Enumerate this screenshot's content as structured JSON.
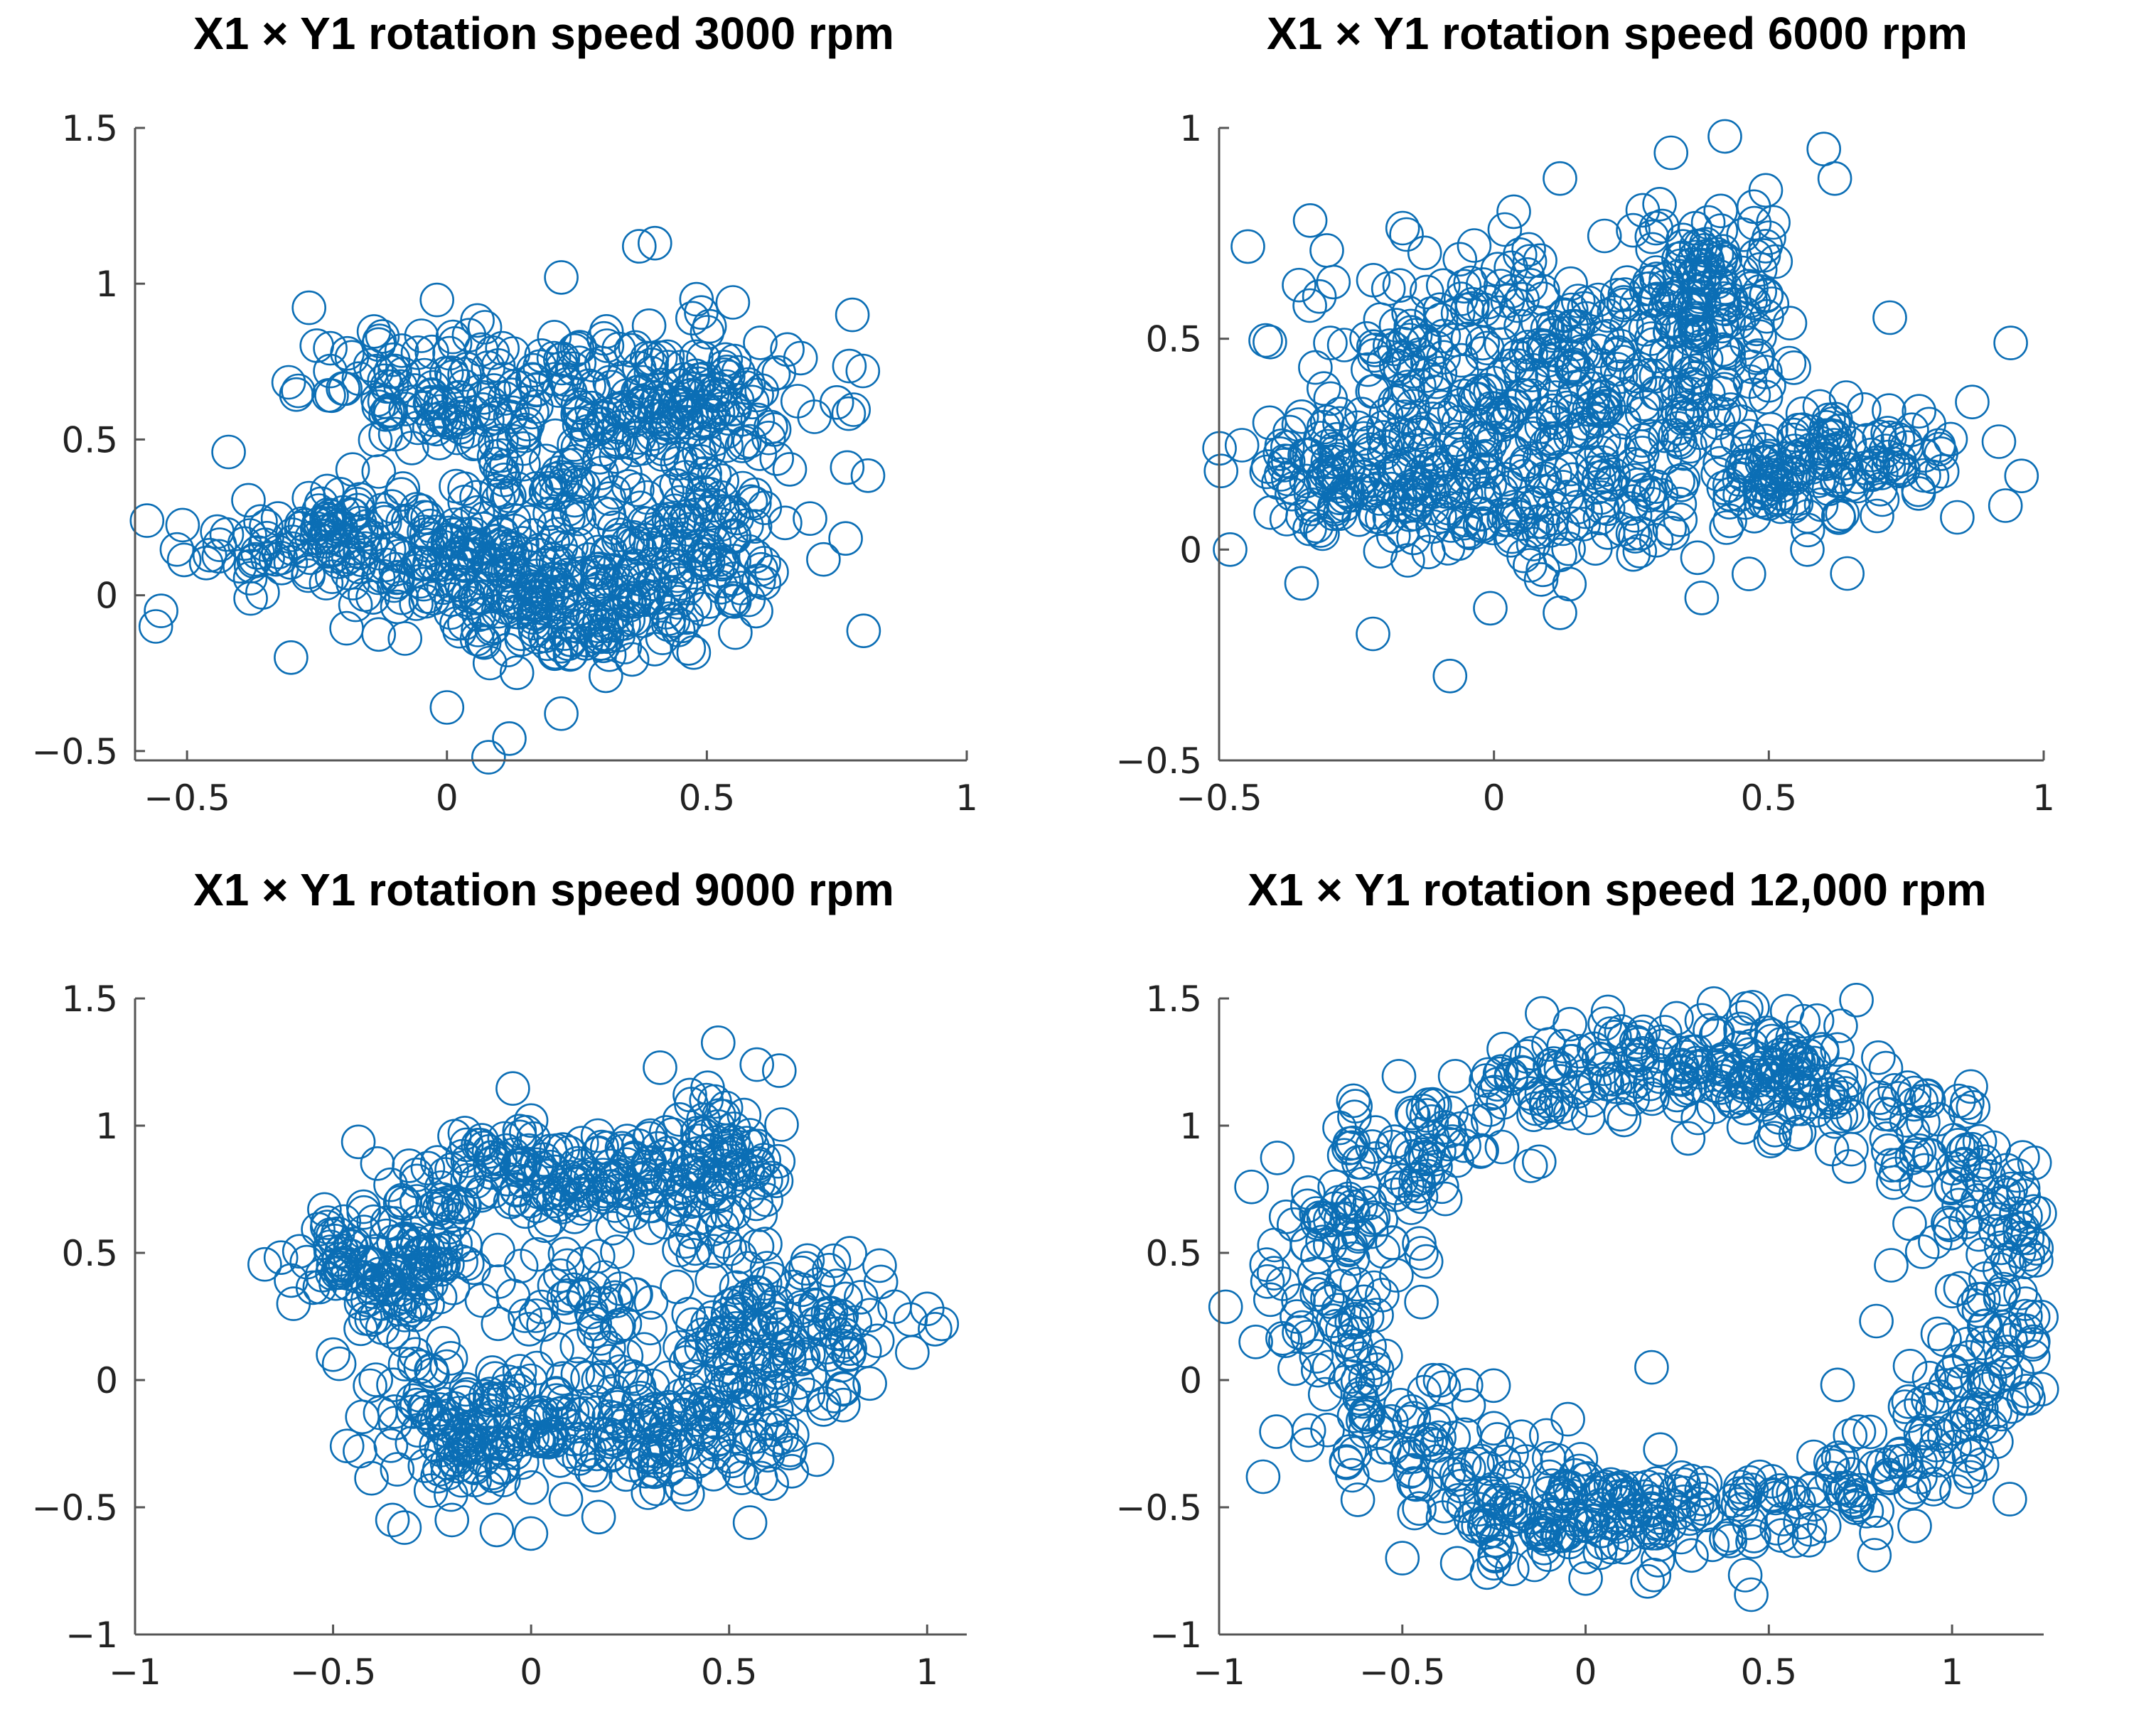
{
  "colors": {
    "marker": "#0b6eb5",
    "axis": "#555555",
    "title": "#000000"
  },
  "chart_data": [
    {
      "type": "scatter",
      "title": "X1 × Y1 rotation speed 3000 rpm",
      "xlabel": "",
      "ylabel": "",
      "xlim": [
        -0.6,
        1.0
      ],
      "ylim": [
        -0.53,
        1.5
      ],
      "xticks": [
        -0.5,
        0,
        0.5,
        1
      ],
      "xtick_labels": [
        "−0.5",
        "0",
        "0.5",
        "1"
      ],
      "yticks": [
        -0.5,
        0,
        0.5,
        1,
        1.5
      ],
      "ytick_labels": [
        "−0.5",
        "0",
        "0.5",
        "1",
        "1.5"
      ],
      "marker": "open-circle",
      "cluster": [
        {
          "center": [
            -0.2,
            0.18
          ],
          "spread": [
            0.15,
            0.1
          ],
          "n": 150
        },
        {
          "center": [
            0.08,
            0.65
          ],
          "spread": [
            0.18,
            0.1
          ],
          "n": 170
        },
        {
          "center": [
            0.45,
            0.6
          ],
          "spread": [
            0.12,
            0.12
          ],
          "n": 150
        },
        {
          "center": [
            0.45,
            0.2
          ],
          "spread": [
            0.12,
            0.15
          ],
          "n": 150
        },
        {
          "center": [
            0.25,
            -0.05
          ],
          "spread": [
            0.12,
            0.1
          ],
          "n": 150
        },
        {
          "center": [
            0.05,
            0.1
          ],
          "spread": [
            0.1,
            0.08
          ],
          "n": 90
        },
        {
          "center": [
            0.2,
            0.35
          ],
          "spread": [
            0.06,
            0.05
          ],
          "n": 30
        }
      ],
      "points": [
        [
          -0.55,
          -0.05
        ],
        [
          -0.56,
          -0.1
        ],
        [
          0.37,
          1.12
        ],
        [
          0.4,
          1.13
        ],
        [
          0.08,
          -0.52
        ],
        [
          0.0,
          -0.36
        ],
        [
          0.78,
          0.9
        ],
        [
          0.8,
          0.72
        ],
        [
          0.77,
          0.41
        ],
        [
          -0.3,
          -0.2
        ],
        [
          0.12,
          -0.46
        ],
        [
          0.55,
          0.94
        ],
        [
          0.48,
          0.95
        ],
        [
          0.22,
          1.02
        ],
        [
          -0.42,
          0.46
        ],
        [
          0.22,
          -0.38
        ]
      ]
    },
    {
      "type": "scatter",
      "title": "X1 × Y1 rotation speed 6000 rpm",
      "xlabel": "",
      "ylabel": "",
      "xlim": [
        -0.5,
        1.0
      ],
      "ylim": [
        -0.5,
        1.0
      ],
      "xticks": [
        -0.5,
        0,
        0.5,
        1
      ],
      "xtick_labels": [
        "−0.5",
        "0",
        "0.5",
        "1"
      ],
      "yticks": [
        -0.5,
        0,
        0.5,
        1
      ],
      "ytick_labels": [
        "−0.5",
        "0",
        "0.5",
        "1"
      ],
      "marker": "open-circle",
      "cluster": [
        {
          "center": [
            -0.05,
            0.45
          ],
          "spread": [
            0.15,
            0.15
          ],
          "n": 200
        },
        {
          "center": [
            0.25,
            0.45
          ],
          "spread": [
            0.12,
            0.15
          ],
          "n": 160
        },
        {
          "center": [
            0.4,
            0.6
          ],
          "spread": [
            0.07,
            0.1
          ],
          "n": 100
        },
        {
          "center": [
            0.6,
            0.2
          ],
          "spread": [
            0.12,
            0.07
          ],
          "n": 150
        },
        {
          "center": [
            0.1,
            0.12
          ],
          "spread": [
            0.2,
            0.08
          ],
          "n": 170
        },
        {
          "center": [
            -0.25,
            0.2
          ],
          "spread": [
            0.1,
            0.08
          ],
          "n": 110
        }
      ],
      "points": [
        [
          0.42,
          0.98
        ],
        [
          -0.48,
          0.0
        ],
        [
          0.94,
          0.49
        ],
        [
          -0.08,
          -0.3
        ],
        [
          -0.22,
          -0.2
        ],
        [
          0.6,
          0.95
        ],
        [
          0.62,
          0.88
        ],
        [
          0.12,
          0.88
        ],
        [
          0.87,
          0.35
        ],
        [
          0.57,
          0.0
        ],
        [
          -0.35,
          -0.08
        ],
        [
          0.12,
          -0.15
        ],
        [
          0.72,
          0.55
        ]
      ]
    },
    {
      "type": "scatter",
      "title": "X1 × Y1 rotation speed 9000 rpm",
      "xlabel": "",
      "ylabel": "",
      "xlim": [
        -1.0,
        1.1
      ],
      "ylim": [
        -1.0,
        1.5
      ],
      "xticks": [
        -1,
        -0.5,
        0,
        0.5,
        1
      ],
      "xtick_labels": [
        "−1",
        "−0.5",
        "0",
        "0.5",
        "1"
      ],
      "yticks": [
        -1,
        -0.5,
        0,
        0.5,
        1,
        1.5
      ],
      "ytick_labels": [
        "−1",
        "−0.5",
        "0",
        "0.5",
        "1",
        "1.5"
      ],
      "marker": "open-circle",
      "cluster": [
        {
          "center": [
            -0.35,
            0.45
          ],
          "spread": [
            0.12,
            0.12
          ],
          "n": 150
        },
        {
          "center": [
            0.05,
            0.8
          ],
          "spread": [
            0.18,
            0.1
          ],
          "n": 150
        },
        {
          "center": [
            0.45,
            0.85
          ],
          "spread": [
            0.1,
            0.15
          ],
          "n": 110
        },
        {
          "center": [
            0.6,
            0.2
          ],
          "spread": [
            0.15,
            0.15
          ],
          "n": 150
        },
        {
          "center": [
            0.3,
            -0.2
          ],
          "spread": [
            0.2,
            0.12
          ],
          "n": 170
        },
        {
          "center": [
            -0.15,
            -0.2
          ],
          "spread": [
            0.12,
            0.15
          ],
          "n": 140
        },
        {
          "center": [
            0.12,
            0.3
          ],
          "spread": [
            0.08,
            0.12
          ],
          "n": 40
        }
      ],
      "points": [
        [
          -0.6,
          0.3
        ],
        [
          1.02,
          0.2
        ],
        [
          -0.32,
          -0.58
        ],
        [
          -0.35,
          -0.55
        ],
        [
          0.57,
          1.24
        ],
        [
          0.0,
          1.02
        ],
        [
          0.88,
          0.45
        ],
        [
          0.75,
          0.1
        ],
        [
          -0.5,
          0.1
        ],
        [
          0.35,
          -0.35
        ],
        [
          -0.2,
          -0.55
        ],
        [
          1.0,
          0.28
        ]
      ]
    },
    {
      "type": "scatter",
      "title": "X1 × Y1 rotation speed 12,000 rpm",
      "xlabel": "",
      "ylabel": "",
      "xlim": [
        -1.0,
        1.25
      ],
      "ylim": [
        -1.0,
        1.5
      ],
      "xticks": [
        -1,
        -0.5,
        0,
        0.5,
        1
      ],
      "xtick_labels": [
        "−1",
        "−0.5",
        "0",
        "0.5",
        "1"
      ],
      "yticks": [
        -1,
        -0.5,
        0,
        0.5,
        1,
        1.5
      ],
      "ytick_labels": [
        "−1",
        "−0.5",
        "0",
        "0.5",
        "1",
        "1.5"
      ],
      "marker": "open-circle",
      "ring": {
        "center": [
          0.25,
          0.35
        ],
        "radius": [
          0.95,
          0.9
        ],
        "thickness": 0.13,
        "n": 800
      },
      "cluster": [
        {
          "center": [
            0.45,
            1.25
          ],
          "spread": [
            0.15,
            0.1
          ],
          "n": 70
        },
        {
          "center": [
            -0.05,
            -0.55
          ],
          "spread": [
            0.15,
            0.1
          ],
          "n": 70
        }
      ],
      "points": [
        [
          -0.9,
          0.15
        ],
        [
          -0.88,
          -0.38
        ],
        [
          1.0,
          0.35
        ],
        [
          1.2,
          0.3
        ],
        [
          0.18,
          0.05
        ],
        [
          0.35,
          1.48
        ],
        [
          0.55,
          1.45
        ],
        [
          -0.5,
          -0.7
        ],
        [
          -0.35,
          -0.72
        ],
        [
          0.0,
          -0.78
        ],
        [
          -0.85,
          0.42
        ],
        [
          0.28,
          0.95
        ],
        [
          1.1,
          0.8
        ],
        [
          0.7,
          -0.45
        ],
        [
          -0.25,
          -0.72
        ]
      ]
    }
  ]
}
